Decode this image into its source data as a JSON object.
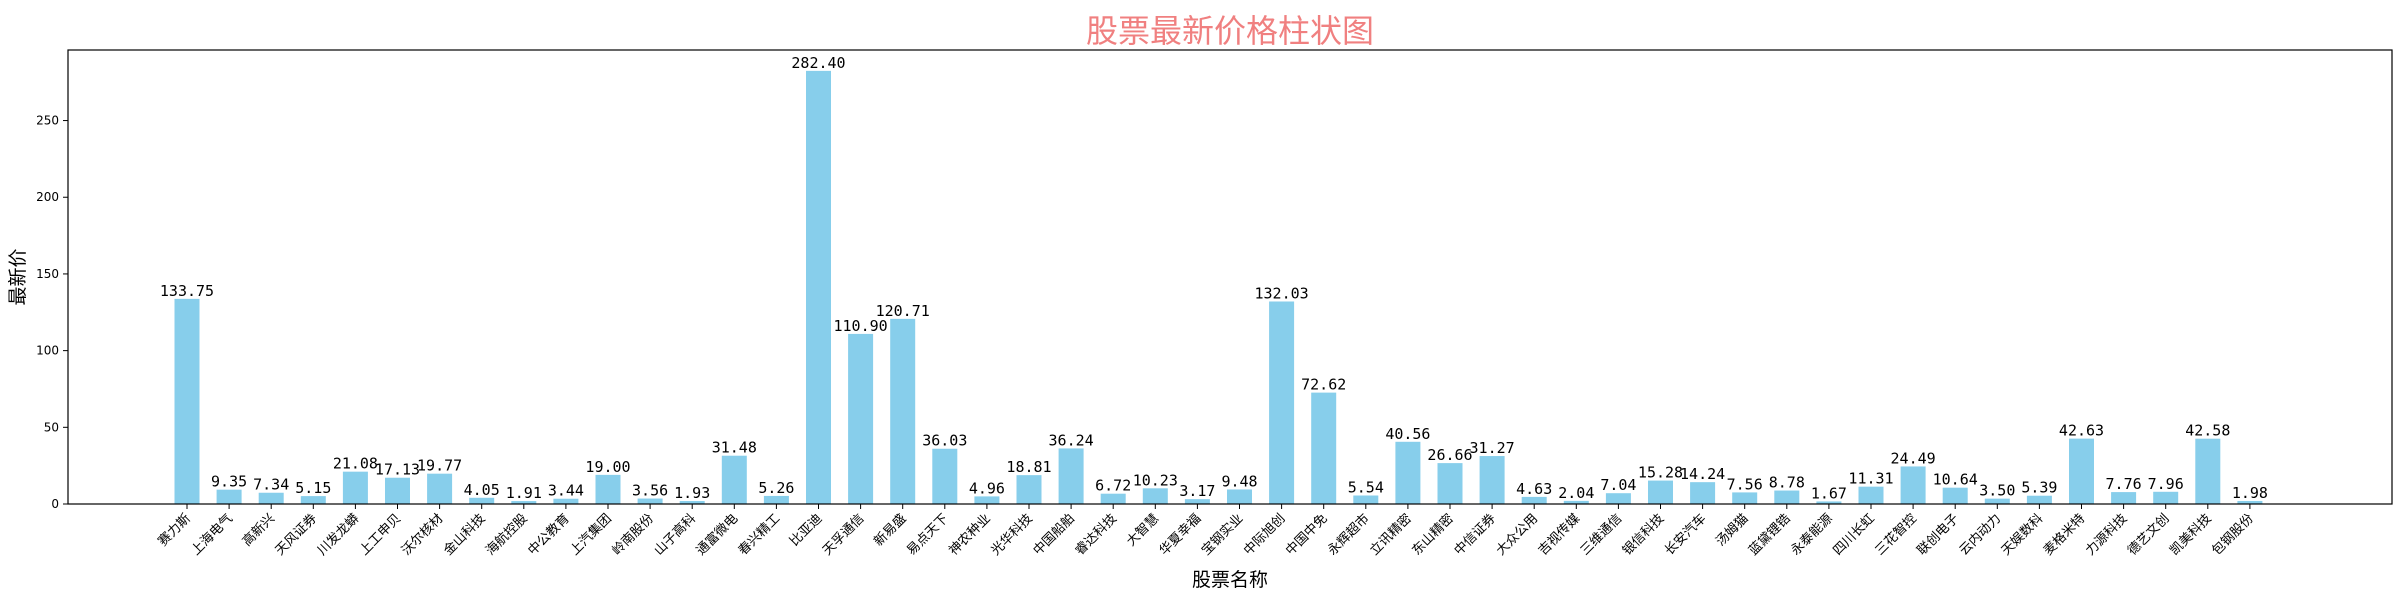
{
  "chart_data": {
    "type": "bar",
    "title": "股票最新价格柱状图",
    "xlabel": "股票名称",
    "ylabel": "最新价",
    "ylim": [
      0,
      296
    ],
    "yticks": [
      0,
      50,
      100,
      150,
      200,
      250
    ],
    "grid": false,
    "bar_color": "#87ceeb",
    "title_color": "#f08080",
    "categories": [
      "赛力斯",
      "上海电气",
      "高新兴",
      "天风证券",
      "川发龙蟒",
      "上工申贝",
      "沃尔核材",
      "金山科技",
      "海航控股",
      "中公教育",
      "上汽集团",
      "岭南股份",
      "山子高科",
      "通富微电",
      "春兴精工",
      "比亚迪",
      "天孚通信",
      "新易盛",
      "易点天下",
      "神农种业",
      "光华科技",
      "中国船舶",
      "睿达科技",
      "大智慧",
      "华夏幸福",
      "宝钢实业",
      "中际旭创",
      "中国中免",
      "永辉超市",
      "立讯精密",
      "东山精密",
      "中信证券",
      "大众公用",
      "吉视传媒",
      "三维通信",
      "银信科技",
      "长安汽车",
      "汤姆猫",
      "蓝黛锂锆",
      "永泰能源",
      "四川长虹",
      "三花智控",
      "联创电子",
      "云内动力",
      "天娱数科",
      "麦格米特",
      "力源科技",
      "德艺文创",
      "凯美科技",
      "包钢股份"
    ],
    "values": [
      133.75,
      9.35,
      7.34,
      5.15,
      21.08,
      17.13,
      19.77,
      4.05,
      1.91,
      3.44,
      19.0,
      3.56,
      1.93,
      31.48,
      5.26,
      282.4,
      110.9,
      120.71,
      36.03,
      4.96,
      18.81,
      36.24,
      6.72,
      10.23,
      3.17,
      9.48,
      132.03,
      72.62,
      5.54,
      40.56,
      26.66,
      31.27,
      4.63,
      2.04,
      7.04,
      15.28,
      14.24,
      7.56,
      8.78,
      1.67,
      11.31,
      24.49,
      10.64,
      3.5,
      5.39,
      42.63,
      7.76,
      7.96,
      42.58,
      1.98
    ],
    "value_labels": [
      "133.75",
      "9.35",
      "7.34",
      "5.15",
      "21.08",
      "17.13",
      "19.77",
      "4.05",
      "1.91",
      "3.44",
      "19.00",
      "3.56",
      "1.93",
      "31.48",
      "5.26",
      "282.40",
      "110.90",
      "120.71",
      "36.03",
      "4.96",
      "18.81",
      "36.24",
      "6.72",
      "10.23",
      "3.17",
      "9.48",
      "132.03",
      "72.62",
      "5.54",
      "40.56",
      "26.66",
      "31.27",
      "4.63",
      "2.04",
      "7.04",
      "15.28",
      "14.24",
      "7.56",
      "8.78",
      "1.67",
      "11.31",
      "24.49",
      "10.64",
      "3.50",
      "5.39",
      "42.63",
      "7.76",
      "7.96",
      "42.58",
      "1.98"
    ]
  }
}
